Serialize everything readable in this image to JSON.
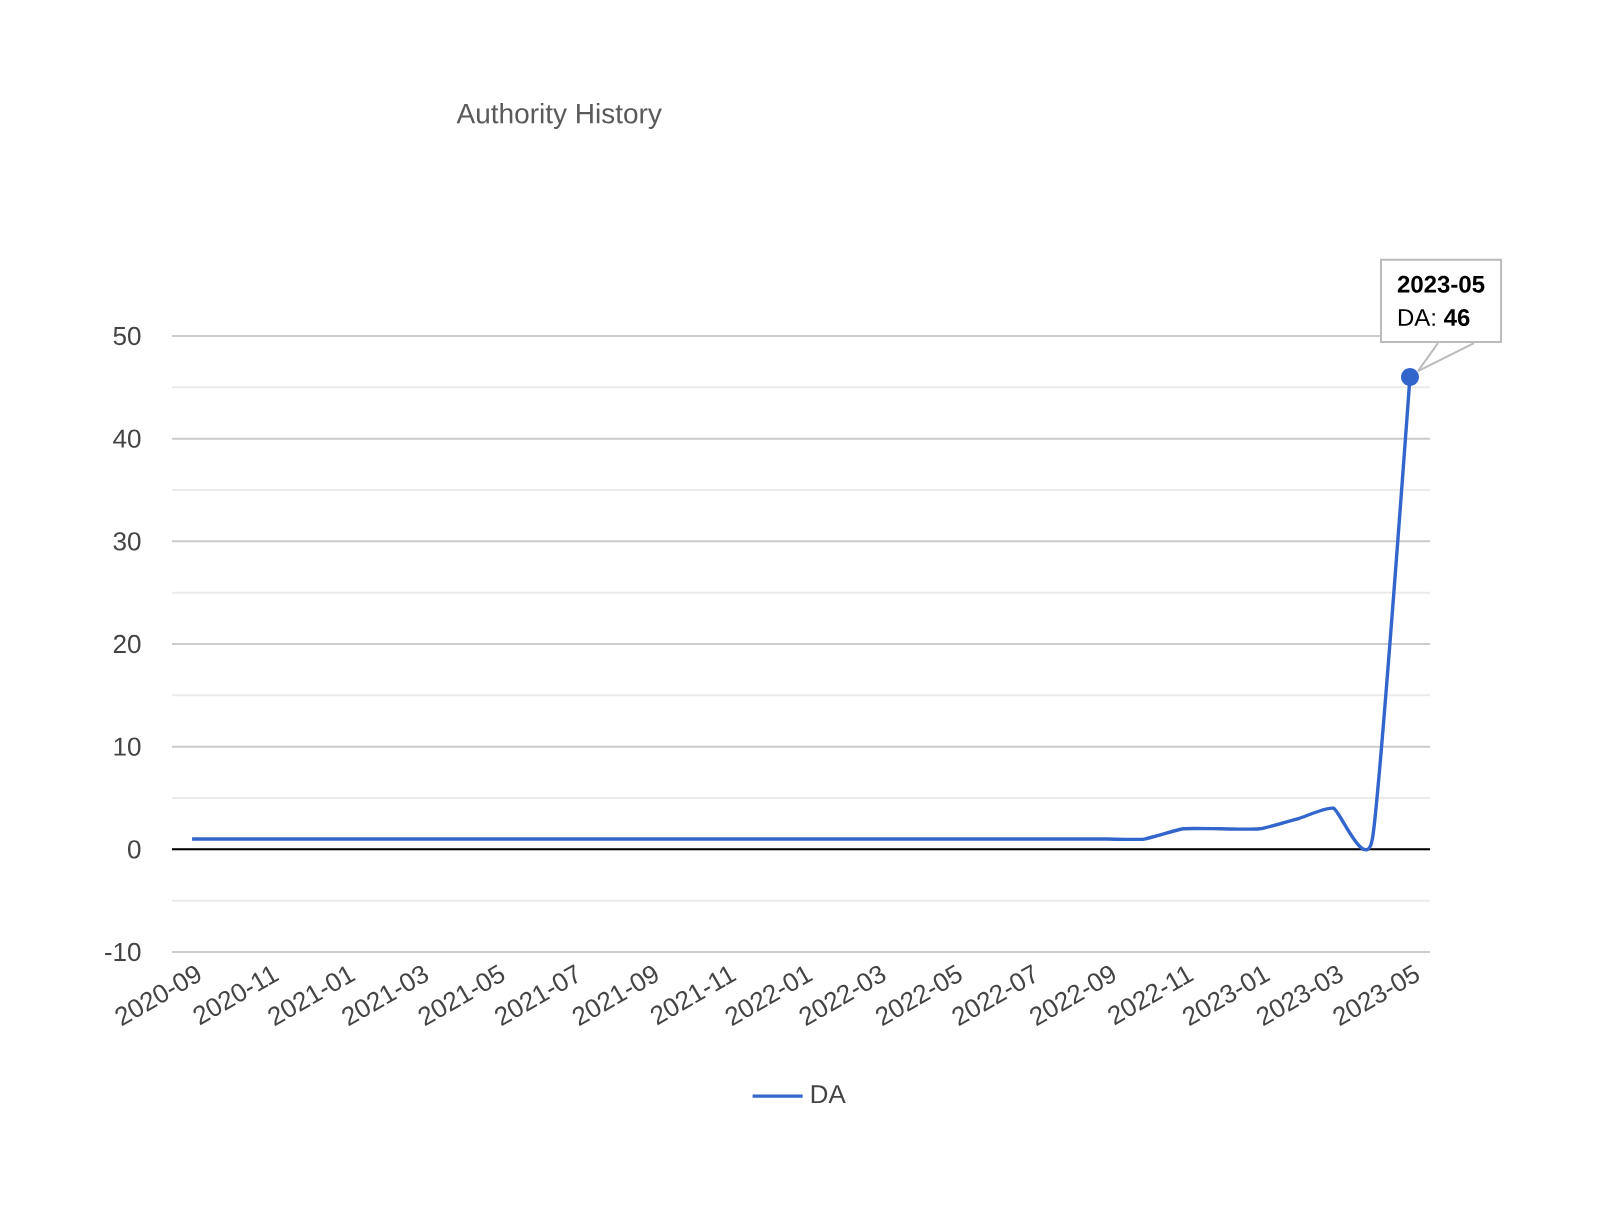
{
  "chart_data": {
    "type": "line",
    "title": "Authority History",
    "x": [
      "2020-09",
      "2020-10",
      "2020-11",
      "2020-12",
      "2021-01",
      "2021-02",
      "2021-03",
      "2021-04",
      "2021-05",
      "2021-06",
      "2021-07",
      "2021-08",
      "2021-09",
      "2021-10",
      "2021-11",
      "2021-12",
      "2022-01",
      "2022-02",
      "2022-03",
      "2022-04",
      "2022-05",
      "2022-06",
      "2022-07",
      "2022-08",
      "2022-09",
      "2022-10",
      "2022-11",
      "2022-12",
      "2023-01",
      "2023-02",
      "2023-03",
      "2023-04",
      "2023-05"
    ],
    "series": [
      {
        "name": "DA",
        "color": "#3366cc",
        "values": [
          1,
          1,
          1,
          1,
          1,
          1,
          1,
          1,
          1,
          1,
          1,
          1,
          1,
          1,
          1,
          1,
          1,
          1,
          1,
          1,
          1,
          1,
          1,
          1,
          1,
          1,
          2,
          2,
          2,
          3,
          4,
          1,
          46
        ]
      }
    ],
    "xlim": [
      "2020-08-16",
      "2023-05-17"
    ],
    "xticks": [
      "2020-09",
      "2020-11",
      "2021-01",
      "2021-03",
      "2021-05",
      "2021-07",
      "2021-09",
      "2021-11",
      "2022-01",
      "2022-03",
      "2022-05",
      "2022-07",
      "2022-09",
      "2022-11",
      "2023-01",
      "2023-03",
      "2023-05"
    ],
    "ylim": [
      -10,
      50
    ],
    "yticks": [
      -10,
      0,
      10,
      20,
      30,
      40,
      50
    ],
    "grid": "y",
    "legend": "bottom",
    "marker": "none",
    "annotations": [
      "2023-05",
      {
        "text": "DA: **46**",
        "x": "2023-05",
        "y": 46
      }
    ]
  }
}
